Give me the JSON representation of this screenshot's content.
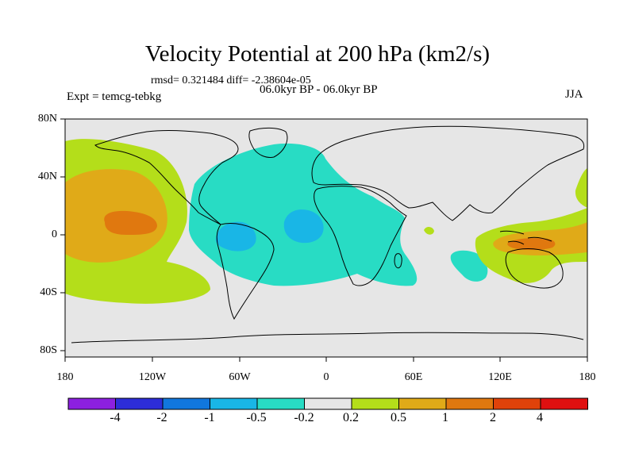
{
  "title": "Velocity Potential at 200 hPa (km2/s)",
  "stats": "rmsd= 0.321484  diff= -2.38604e-05",
  "experiment": "Expt = temcg-tebkg",
  "period": "06.0kyr BP - 06.0kyr BP",
  "season": "JJA",
  "lat_ticks": [
    "80N",
    "40N",
    "0",
    "40S",
    "80S"
  ],
  "lon_ticks": [
    "180",
    "120W",
    "60W",
    "0",
    "60E",
    "120E",
    "180"
  ],
  "colorbar": {
    "labels": [
      "-4",
      "-2",
      "-1",
      "-0.5",
      "-0.2",
      "0.2",
      "0.5",
      "1",
      "2",
      "4"
    ],
    "colors": [
      "#8c20e0",
      "#2d2dd8",
      "#1177dd",
      "#19b6e6",
      "#28dcc4",
      "#e6e6e6",
      "#b4de1a",
      "#e0aa18",
      "#e0780f",
      "#e0420a",
      "#e01010"
    ]
  }
}
